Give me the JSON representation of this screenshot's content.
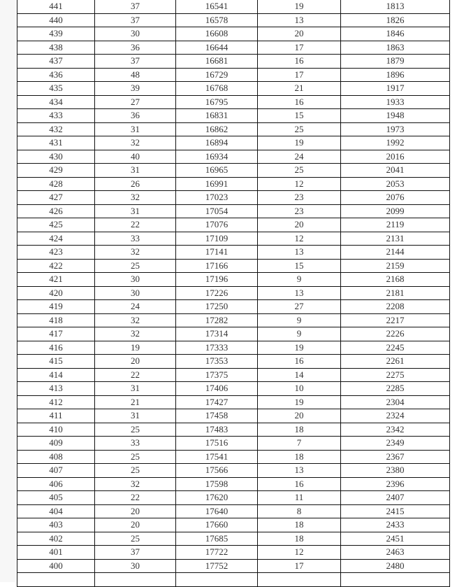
{
  "table": {
    "rows": [
      [
        "441",
        "37",
        "16541",
        "19",
        "1813"
      ],
      [
        "440",
        "37",
        "16578",
        "13",
        "1826"
      ],
      [
        "439",
        "30",
        "16608",
        "20",
        "1846"
      ],
      [
        "438",
        "36",
        "16644",
        "17",
        "1863"
      ],
      [
        "437",
        "37",
        "16681",
        "16",
        "1879"
      ],
      [
        "436",
        "48",
        "16729",
        "17",
        "1896"
      ],
      [
        "435",
        "39",
        "16768",
        "21",
        "1917"
      ],
      [
        "434",
        "27",
        "16795",
        "16",
        "1933"
      ],
      [
        "433",
        "36",
        "16831",
        "15",
        "1948"
      ],
      [
        "432",
        "31",
        "16862",
        "25",
        "1973"
      ],
      [
        "431",
        "32",
        "16894",
        "19",
        "1992"
      ],
      [
        "430",
        "40",
        "16934",
        "24",
        "2016"
      ],
      [
        "429",
        "31",
        "16965",
        "25",
        "2041"
      ],
      [
        "428",
        "26",
        "16991",
        "12",
        "2053"
      ],
      [
        "427",
        "32",
        "17023",
        "23",
        "2076"
      ],
      [
        "426",
        "31",
        "17054",
        "23",
        "2099"
      ],
      [
        "425",
        "22",
        "17076",
        "20",
        "2119"
      ],
      [
        "424",
        "33",
        "17109",
        "12",
        "2131"
      ],
      [
        "423",
        "32",
        "17141",
        "13",
        "2144"
      ],
      [
        "422",
        "25",
        "17166",
        "15",
        "2159"
      ],
      [
        "421",
        "30",
        "17196",
        "9",
        "2168"
      ],
      [
        "420",
        "30",
        "17226",
        "13",
        "2181"
      ],
      [
        "419",
        "24",
        "17250",
        "27",
        "2208"
      ],
      [
        "418",
        "32",
        "17282",
        "9",
        "2217"
      ],
      [
        "417",
        "32",
        "17314",
        "9",
        "2226"
      ],
      [
        "416",
        "19",
        "17333",
        "19",
        "2245"
      ],
      [
        "415",
        "20",
        "17353",
        "16",
        "2261"
      ],
      [
        "414",
        "22",
        "17375",
        "14",
        "2275"
      ],
      [
        "413",
        "31",
        "17406",
        "10",
        "2285"
      ],
      [
        "412",
        "21",
        "17427",
        "19",
        "2304"
      ],
      [
        "411",
        "31",
        "17458",
        "20",
        "2324"
      ],
      [
        "410",
        "25",
        "17483",
        "18",
        "2342"
      ],
      [
        "409",
        "33",
        "17516",
        "7",
        "2349"
      ],
      [
        "408",
        "25",
        "17541",
        "18",
        "2367"
      ],
      [
        "407",
        "25",
        "17566",
        "13",
        "2380"
      ],
      [
        "406",
        "32",
        "17598",
        "16",
        "2396"
      ],
      [
        "405",
        "22",
        "17620",
        "11",
        "2407"
      ],
      [
        "404",
        "20",
        "17640",
        "8",
        "2415"
      ],
      [
        "403",
        "20",
        "17660",
        "18",
        "2433"
      ],
      [
        "402",
        "25",
        "17685",
        "18",
        "2451"
      ],
      [
        "401",
        "37",
        "17722",
        "12",
        "2463"
      ],
      [
        "400",
        "30",
        "17752",
        "17",
        "2480"
      ]
    ]
  }
}
